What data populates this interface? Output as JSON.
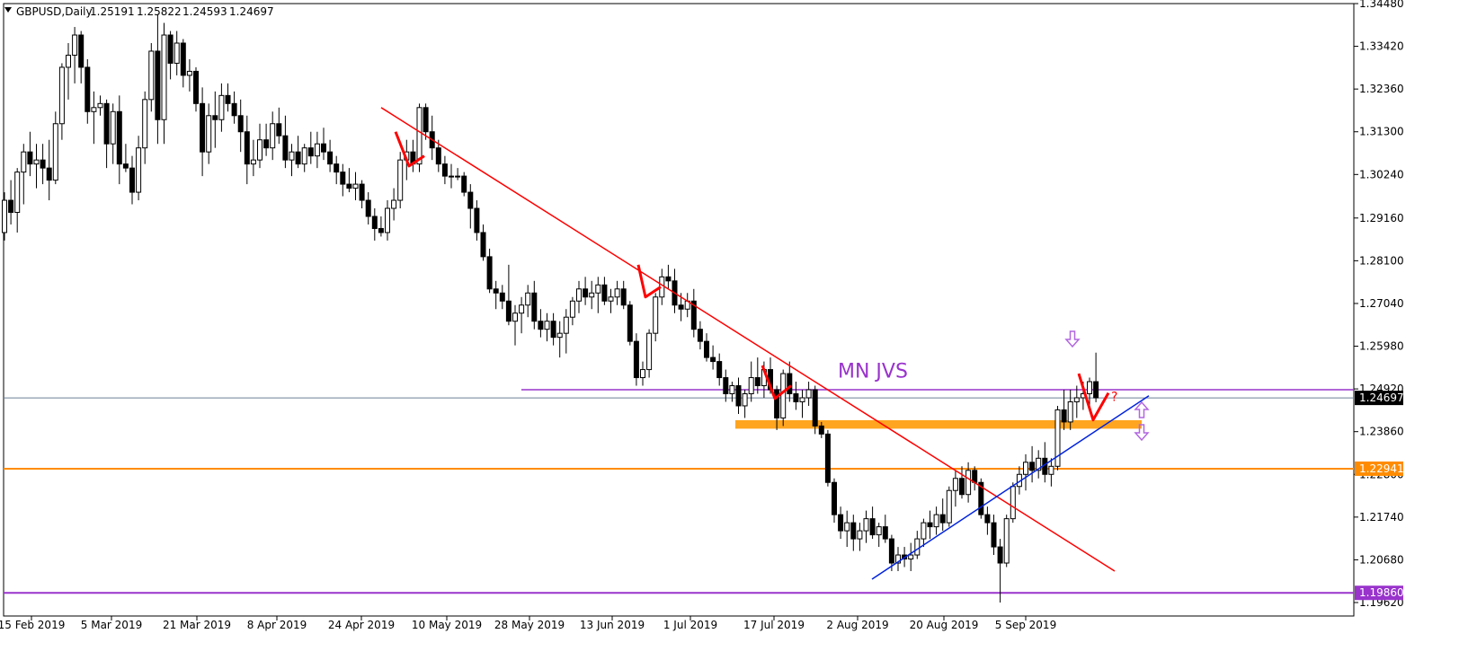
{
  "header": {
    "symbol": "GBPUSD,Daily",
    "open": "1.25191",
    "high": "1.25822",
    "low": "1.24593",
    "close": "1.24697"
  },
  "chart_data": {
    "type": "candlestick",
    "title": "",
    "grid": false,
    "ylim": [
      1.1954,
      1.3448
    ],
    "y_ticks": [
      "1.34480",
      "1.33420",
      "1.32360",
      "1.31300",
      "1.30240",
      "1.29160",
      "1.28100",
      "1.27040",
      "1.25980",
      "1.24920",
      "1.23860",
      "1.22800",
      "1.21740",
      "1.20680",
      "1.19620"
    ],
    "x_ticks": [
      "15 Feb 2019",
      "5 Mar 2019",
      "21 Mar 2019",
      "8 Apr 2019",
      "24 Apr 2019",
      "10 May 2019",
      "28 May 2019",
      "13 Jun 2019",
      "1 Jul 2019",
      "17 Jul 2019",
      "2 Aug 2019",
      "20 Aug 2019",
      "5 Sep 2019"
    ],
    "series": [
      {
        "values": [
          [
            1.288,
            1.298,
            1.286,
            1.296
          ],
          [
            1.296,
            1.301,
            1.29,
            1.293
          ],
          [
            1.293,
            1.304,
            1.288,
            1.303
          ],
          [
            1.303,
            1.31,
            1.295,
            1.308
          ],
          [
            1.308,
            1.313,
            1.302,
            1.305
          ],
          [
            1.305,
            1.31,
            1.299,
            1.306
          ],
          [
            1.306,
            1.31,
            1.3,
            1.304
          ],
          [
            1.304,
            1.311,
            1.296,
            1.301
          ],
          [
            1.301,
            1.318,
            1.3,
            1.315
          ],
          [
            1.315,
            1.33,
            1.311,
            1.329
          ],
          [
            1.329,
            1.335,
            1.321,
            1.332
          ],
          [
            1.332,
            1.339,
            1.325,
            1.337
          ],
          [
            1.337,
            1.338,
            1.325,
            1.329
          ],
          [
            1.329,
            1.331,
            1.315,
            1.318
          ],
          [
            1.318,
            1.323,
            1.31,
            1.319
          ],
          [
            1.319,
            1.322,
            1.317,
            1.32
          ],
          [
            1.32,
            1.321,
            1.304,
            1.31
          ],
          [
            1.31,
            1.32,
            1.305,
            1.318
          ],
          [
            1.318,
            1.322,
            1.3,
            1.305
          ],
          [
            1.305,
            1.31,
            1.303,
            1.304
          ],
          [
            1.304,
            1.307,
            1.295,
            1.298
          ],
          [
            1.298,
            1.312,
            1.296,
            1.309
          ],
          [
            1.309,
            1.323,
            1.305,
            1.321
          ],
          [
            1.321,
            1.335,
            1.318,
            1.333
          ],
          [
            1.333,
            1.342,
            1.31,
            1.316
          ],
          [
            1.316,
            1.34,
            1.31,
            1.337
          ],
          [
            1.337,
            1.338,
            1.326,
            1.33
          ],
          [
            1.33,
            1.338,
            1.327,
            1.335
          ],
          [
            1.335,
            1.336,
            1.324,
            1.327
          ],
          [
            1.327,
            1.331,
            1.323,
            1.328
          ],
          [
            1.328,
            1.329,
            1.318,
            1.32
          ],
          [
            1.32,
            1.324,
            1.302,
            1.308
          ],
          [
            1.308,
            1.32,
            1.305,
            1.317
          ],
          [
            1.317,
            1.323,
            1.309,
            1.316
          ],
          [
            1.316,
            1.325,
            1.313,
            1.322
          ],
          [
            1.322,
            1.325,
            1.318,
            1.32
          ],
          [
            1.32,
            1.323,
            1.315,
            1.317
          ],
          [
            1.317,
            1.321,
            1.308,
            1.313
          ],
          [
            1.313,
            1.317,
            1.3,
            1.305
          ],
          [
            1.305,
            1.311,
            1.302,
            1.306
          ],
          [
            1.306,
            1.315,
            1.304,
            1.311
          ],
          [
            1.311,
            1.315,
            1.307,
            1.309
          ],
          [
            1.309,
            1.318,
            1.306,
            1.315
          ],
          [
            1.315,
            1.319,
            1.31,
            1.312
          ],
          [
            1.312,
            1.317,
            1.304,
            1.306
          ],
          [
            1.306,
            1.31,
            1.302,
            1.308
          ],
          [
            1.308,
            1.312,
            1.304,
            1.305
          ],
          [
            1.305,
            1.31,
            1.303,
            1.309
          ],
          [
            1.309,
            1.313,
            1.305,
            1.307
          ],
          [
            1.307,
            1.313,
            1.304,
            1.31
          ],
          [
            1.31,
            1.314,
            1.306,
            1.308
          ],
          [
            1.308,
            1.311,
            1.303,
            1.305
          ],
          [
            1.305,
            1.307,
            1.3,
            1.303
          ],
          [
            1.303,
            1.305,
            1.297,
            1.3
          ],
          [
            1.3,
            1.304,
            1.298,
            1.299
          ],
          [
            1.299,
            1.303,
            1.296,
            1.3
          ],
          [
            1.3,
            1.301,
            1.294,
            1.296
          ],
          [
            1.296,
            1.298,
            1.29,
            1.292
          ],
          [
            1.292,
            1.294,
            1.286,
            1.289
          ],
          [
            1.289,
            1.292,
            1.287,
            1.288
          ],
          [
            1.288,
            1.296,
            1.286,
            1.294
          ],
          [
            1.294,
            1.299,
            1.291,
            1.296
          ],
          [
            1.296,
            1.308,
            1.294,
            1.306
          ],
          [
            1.306,
            1.311,
            1.301,
            1.308
          ],
          [
            1.308,
            1.311,
            1.303,
            1.305
          ],
          [
            1.305,
            1.32,
            1.303,
            1.319
          ],
          [
            1.319,
            1.32,
            1.311,
            1.313
          ],
          [
            1.313,
            1.317,
            1.306,
            1.309
          ],
          [
            1.309,
            1.311,
            1.303,
            1.305
          ],
          [
            1.305,
            1.307,
            1.3,
            1.302
          ],
          [
            1.302,
            1.305,
            1.299,
            1.302
          ],
          [
            1.302,
            1.304,
            1.301,
            1.302
          ],
          [
            1.302,
            1.303,
            1.297,
            1.298
          ],
          [
            1.298,
            1.3,
            1.289,
            1.294
          ],
          [
            1.294,
            1.296,
            1.286,
            1.288
          ],
          [
            1.288,
            1.29,
            1.281,
            1.282
          ],
          [
            1.282,
            1.284,
            1.273,
            1.274
          ],
          [
            1.274,
            1.276,
            1.269,
            1.273
          ],
          [
            1.273,
            1.275,
            1.269,
            1.271
          ],
          [
            1.271,
            1.28,
            1.265,
            1.266
          ],
          [
            1.266,
            1.27,
            1.26,
            1.268
          ],
          [
            1.268,
            1.272,
            1.263,
            1.27
          ],
          [
            1.27,
            1.275,
            1.267,
            1.273
          ],
          [
            1.273,
            1.276,
            1.264,
            1.266
          ],
          [
            1.266,
            1.269,
            1.262,
            1.264
          ],
          [
            1.264,
            1.268,
            1.261,
            1.266
          ],
          [
            1.266,
            1.268,
            1.26,
            1.262
          ],
          [
            1.262,
            1.266,
            1.257,
            1.263
          ],
          [
            1.263,
            1.269,
            1.258,
            1.267
          ],
          [
            1.267,
            1.272,
            1.265,
            1.271
          ],
          [
            1.271,
            1.276,
            1.268,
            1.274
          ],
          [
            1.274,
            1.277,
            1.27,
            1.272
          ],
          [
            1.272,
            1.276,
            1.269,
            1.273
          ],
          [
            1.273,
            1.277,
            1.268,
            1.275
          ],
          [
            1.275,
            1.277,
            1.27,
            1.271
          ],
          [
            1.271,
            1.274,
            1.268,
            1.272
          ],
          [
            1.272,
            1.276,
            1.27,
            1.274
          ],
          [
            1.274,
            1.276,
            1.269,
            1.27
          ],
          [
            1.27,
            1.271,
            1.26,
            1.261
          ],
          [
            1.261,
            1.263,
            1.25,
            1.252
          ],
          [
            1.252,
            1.256,
            1.25,
            1.254
          ],
          [
            1.254,
            1.264,
            1.252,
            1.263
          ],
          [
            1.263,
            1.273,
            1.261,
            1.272
          ],
          [
            1.272,
            1.279,
            1.27,
            1.277
          ],
          [
            1.277,
            1.28,
            1.274,
            1.276
          ],
          [
            1.276,
            1.279,
            1.268,
            1.27
          ],
          [
            1.27,
            1.273,
            1.266,
            1.269
          ],
          [
            1.269,
            1.273,
            1.267,
            1.271
          ],
          [
            1.271,
            1.274,
            1.262,
            1.264
          ],
          [
            1.264,
            1.266,
            1.259,
            1.261
          ],
          [
            1.261,
            1.263,
            1.256,
            1.257
          ],
          [
            1.257,
            1.26,
            1.254,
            1.256
          ],
          [
            1.256,
            1.258,
            1.25,
            1.252
          ],
          [
            1.252,
            1.254,
            1.246,
            1.248
          ],
          [
            1.248,
            1.251,
            1.246,
            1.25
          ],
          [
            1.25,
            1.252,
            1.243,
            1.245
          ],
          [
            1.245,
            1.249,
            1.242,
            1.248
          ],
          [
            1.248,
            1.256,
            1.246,
            1.252
          ],
          [
            1.252,
            1.257,
            1.248,
            1.25
          ],
          [
            1.25,
            1.256,
            1.247,
            1.254
          ],
          [
            1.254,
            1.257,
            1.248,
            1.249
          ],
          [
            1.249,
            1.25,
            1.239,
            1.242
          ],
          [
            1.242,
            1.254,
            1.24,
            1.253
          ],
          [
            1.253,
            1.256,
            1.246,
            1.248
          ],
          [
            1.248,
            1.251,
            1.244,
            1.246
          ],
          [
            1.246,
            1.249,
            1.242,
            1.247
          ],
          [
            1.247,
            1.251,
            1.245,
            1.249
          ],
          [
            1.249,
            1.25,
            1.238,
            1.24
          ],
          [
            1.24,
            1.241,
            1.237,
            1.238
          ],
          [
            1.238,
            1.239,
            1.225,
            1.226
          ],
          [
            1.226,
            1.227,
            1.216,
            1.218
          ],
          [
            1.218,
            1.22,
            1.212,
            1.214
          ],
          [
            1.214,
            1.219,
            1.21,
            1.216
          ],
          [
            1.216,
            1.218,
            1.209,
            1.212
          ],
          [
            1.212,
            1.216,
            1.209,
            1.214
          ],
          [
            1.214,
            1.219,
            1.211,
            1.217
          ],
          [
            1.217,
            1.22,
            1.212,
            1.213
          ],
          [
            1.213,
            1.216,
            1.21,
            1.215
          ],
          [
            1.215,
            1.218,
            1.211,
            1.212
          ],
          [
            1.212,
            1.213,
            1.204,
            1.206
          ],
          [
            1.206,
            1.21,
            1.204,
            1.208
          ],
          [
            1.208,
            1.21,
            1.205,
            1.207
          ],
          [
            1.207,
            1.211,
            1.204,
            1.208
          ],
          [
            1.208,
            1.214,
            1.207,
            1.212
          ],
          [
            1.212,
            1.217,
            1.21,
            1.216
          ],
          [
            1.216,
            1.219,
            1.212,
            1.215
          ],
          [
            1.215,
            1.22,
            1.213,
            1.218
          ],
          [
            1.218,
            1.222,
            1.214,
            1.216
          ],
          [
            1.216,
            1.225,
            1.215,
            1.224
          ],
          [
            1.224,
            1.229,
            1.22,
            1.227
          ],
          [
            1.227,
            1.23,
            1.222,
            1.223
          ],
          [
            1.223,
            1.231,
            1.221,
            1.229
          ],
          [
            1.229,
            1.23,
            1.224,
            1.226
          ],
          [
            1.226,
            1.227,
            1.217,
            1.218
          ],
          [
            1.218,
            1.22,
            1.213,
            1.216
          ],
          [
            1.216,
            1.218,
            1.208,
            1.21
          ],
          [
            1.21,
            1.212,
            1.1962,
            1.206
          ],
          [
            1.206,
            1.218,
            1.205,
            1.217
          ],
          [
            1.217,
            1.226,
            1.216,
            1.225
          ],
          [
            1.225,
            1.23,
            1.223,
            1.228
          ],
          [
            1.228,
            1.233,
            1.224,
            1.231
          ],
          [
            1.231,
            1.235,
            1.226,
            1.229
          ],
          [
            1.229,
            1.234,
            1.227,
            1.232
          ],
          [
            1.232,
            1.236,
            1.226,
            1.228
          ],
          [
            1.228,
            1.232,
            1.225,
            1.23
          ],
          [
            1.23,
            1.245,
            1.229,
            1.244
          ],
          [
            1.244,
            1.249,
            1.239,
            1.241
          ],
          [
            1.241,
            1.249,
            1.239,
            1.246
          ],
          [
            1.246,
            1.25,
            1.242,
            1.247
          ],
          [
            1.247,
            1.251,
            1.244,
            1.248
          ],
          [
            1.248,
            1.252,
            1.245,
            1.251
          ],
          [
            1.251,
            1.2582,
            1.2459,
            1.247
          ]
        ]
      }
    ],
    "annotations": {
      "label_text": "MN JVS",
      "question_mark": "?",
      "level_jvs": 1.249,
      "level_current": 1.24697,
      "level_mid": 1.22941,
      "level_low": 1.1986,
      "zone": [
        1.24,
        1.241
      ],
      "price_tags": [
        "1.24697",
        "1.22941",
        "1.19860"
      ]
    }
  },
  "colors": {
    "red": "#ff0000",
    "purple": "#9933cc",
    "orange": "#ff8c00",
    "zone": "#ffa520",
    "blue": "#0022dd",
    "current": "#6b7f99",
    "arrow": "#b266e0"
  }
}
